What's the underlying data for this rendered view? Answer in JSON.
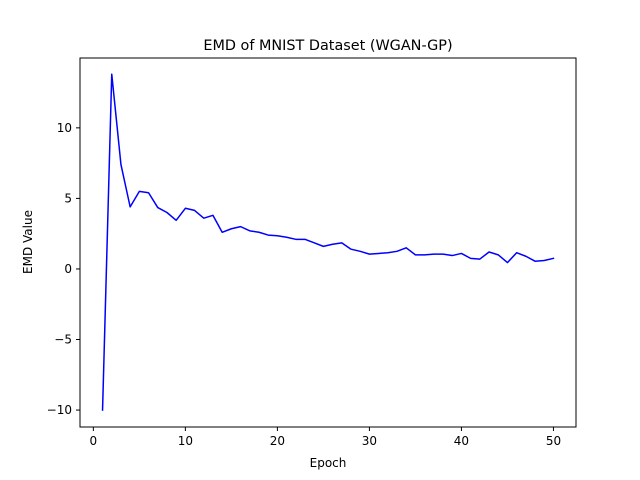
{
  "chart_data": {
    "type": "line",
    "title": "EMD of MNIST Dataset (WGAN-GP)",
    "xlabel": "Epoch",
    "ylabel": "EMD Value",
    "xlim": [
      -1.45,
      52.45
    ],
    "ylim": [
      -11.2,
      14.95
    ],
    "xticks": [
      0,
      10,
      20,
      30,
      40,
      50
    ],
    "yticks": [
      -10,
      -5,
      0,
      5,
      10
    ],
    "ytick_labels": [
      "−10",
      "−5",
      "0",
      "5",
      "10"
    ],
    "grid": false,
    "series": [
      {
        "color": "#0000ff",
        "x": [
          1,
          2,
          3,
          4,
          5,
          6,
          7,
          8,
          9,
          10,
          11,
          12,
          13,
          14,
          15,
          16,
          17,
          18,
          19,
          20,
          21,
          22,
          23,
          24,
          25,
          26,
          27,
          28,
          29,
          30,
          31,
          32,
          33,
          34,
          35,
          36,
          37,
          38,
          39,
          40,
          41,
          42,
          43,
          44,
          45,
          46,
          47,
          48,
          49,
          50
        ],
        "y": [
          -10.0,
          13.8,
          7.4,
          4.4,
          5.5,
          5.4,
          4.35,
          4.0,
          3.45,
          4.3,
          4.15,
          3.6,
          3.8,
          2.6,
          2.85,
          3.0,
          2.7,
          2.6,
          2.4,
          2.35,
          2.25,
          2.1,
          2.1,
          1.85,
          1.6,
          1.75,
          1.85,
          1.4,
          1.25,
          1.05,
          1.1,
          1.15,
          1.25,
          1.5,
          1.0,
          1.0,
          1.05,
          1.05,
          0.95,
          1.1,
          0.75,
          0.7,
          1.2,
          1.0,
          0.45,
          1.15,
          0.9,
          0.55,
          0.6,
          0.75
        ]
      }
    ]
  }
}
